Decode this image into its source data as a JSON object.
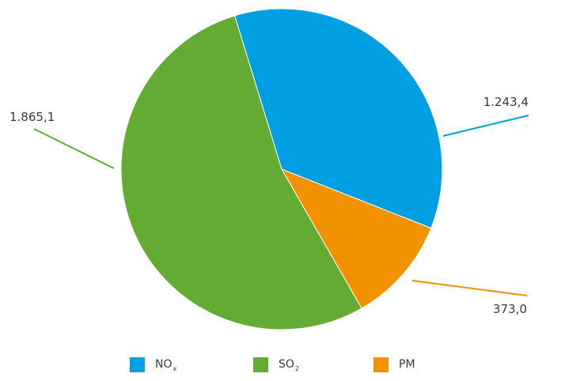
{
  "chart_data": {
    "type": "pie",
    "categories": [
      "NOx",
      "SO2",
      "PM"
    ],
    "values": [
      1243.4,
      1865.1,
      373.0
    ],
    "value_labels": [
      "1.243,4",
      "1.865,1",
      "373,0"
    ],
    "colors": [
      "#009fe3",
      "#63ab33",
      "#f39200"
    ],
    "legend": {
      "placement": "bottom",
      "entries": [
        {
          "main": "NO",
          "sub": "x"
        },
        {
          "main": "SO",
          "sub": "2"
        },
        {
          "main": "PM",
          "sub": ""
        }
      ]
    }
  }
}
